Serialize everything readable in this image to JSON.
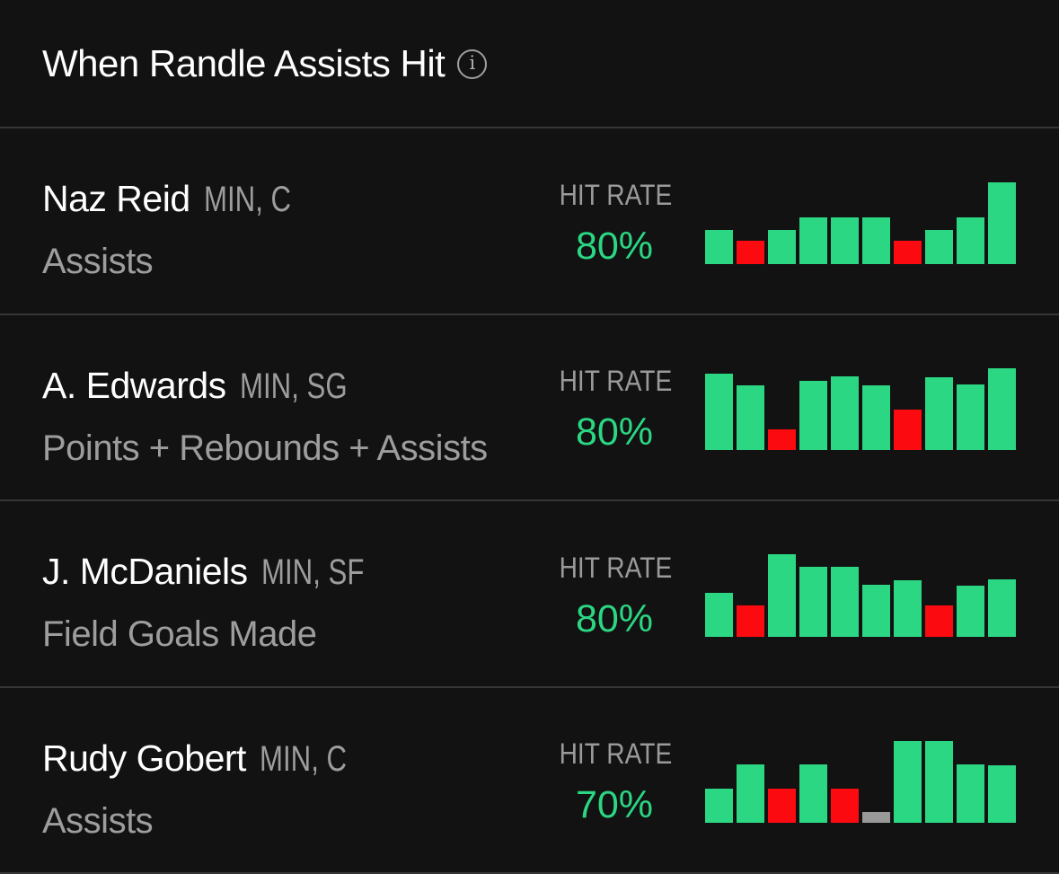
{
  "header": {
    "title": "When Randle Assists Hit",
    "info_glyph": "i"
  },
  "labels": {
    "hit_rate": "HIT RATE"
  },
  "colors": {
    "hit_green": "#2bd783",
    "miss_red": "#fb0a10",
    "dnp_gray": "#999999",
    "background": "#121212",
    "divider": "#363636",
    "muted_text": "#9d9d9d"
  },
  "rows": [
    {
      "player": "Naz Reid",
      "team_pos": "MIN, C",
      "stat": "Assists",
      "hit_rate": "80%",
      "bars": [
        {
          "height": 38,
          "result": "hit"
        },
        {
          "height": 26,
          "result": "miss"
        },
        {
          "height": 38,
          "result": "hit"
        },
        {
          "height": 52,
          "result": "hit"
        },
        {
          "height": 52,
          "result": "hit"
        },
        {
          "height": 52,
          "result": "hit"
        },
        {
          "height": 26,
          "result": "miss"
        },
        {
          "height": 38,
          "result": "hit"
        },
        {
          "height": 52,
          "result": "hit"
        },
        {
          "height": 91,
          "result": "hit"
        }
      ]
    },
    {
      "player": "A. Edwards",
      "team_pos": "MIN, SG",
      "stat": "Points + Rebounds + Assists",
      "hit_rate": "80%",
      "bars": [
        {
          "height": 85,
          "result": "hit"
        },
        {
          "height": 72,
          "result": "hit"
        },
        {
          "height": 23,
          "result": "miss"
        },
        {
          "height": 77,
          "result": "hit"
        },
        {
          "height": 82,
          "result": "hit"
        },
        {
          "height": 72,
          "result": "hit"
        },
        {
          "height": 45,
          "result": "miss"
        },
        {
          "height": 81,
          "result": "hit"
        },
        {
          "height": 73,
          "result": "hit"
        },
        {
          "height": 91,
          "result": "hit"
        }
      ]
    },
    {
      "player": "J. McDaniels",
      "team_pos": "MIN, SF",
      "stat": "Field Goals Made",
      "hit_rate": "80%",
      "bars": [
        {
          "height": 49,
          "result": "hit"
        },
        {
          "height": 35,
          "result": "miss"
        },
        {
          "height": 92,
          "result": "hit"
        },
        {
          "height": 78,
          "result": "hit"
        },
        {
          "height": 78,
          "result": "hit"
        },
        {
          "height": 58,
          "result": "hit"
        },
        {
          "height": 63,
          "result": "hit"
        },
        {
          "height": 35,
          "result": "miss"
        },
        {
          "height": 57,
          "result": "hit"
        },
        {
          "height": 64,
          "result": "hit"
        }
      ]
    },
    {
      "player": "Rudy Gobert",
      "team_pos": "MIN, C",
      "stat": "Assists",
      "hit_rate": "70%",
      "bars": [
        {
          "height": 38,
          "result": "hit"
        },
        {
          "height": 65,
          "result": "hit"
        },
        {
          "height": 38,
          "result": "miss"
        },
        {
          "height": 65,
          "result": "hit"
        },
        {
          "height": 38,
          "result": "miss"
        },
        {
          "height": 12,
          "result": "dnp"
        },
        {
          "height": 91,
          "result": "hit"
        },
        {
          "height": 91,
          "result": "hit"
        },
        {
          "height": 65,
          "result": "hit"
        },
        {
          "height": 64,
          "result": "hit"
        }
      ]
    }
  ]
}
